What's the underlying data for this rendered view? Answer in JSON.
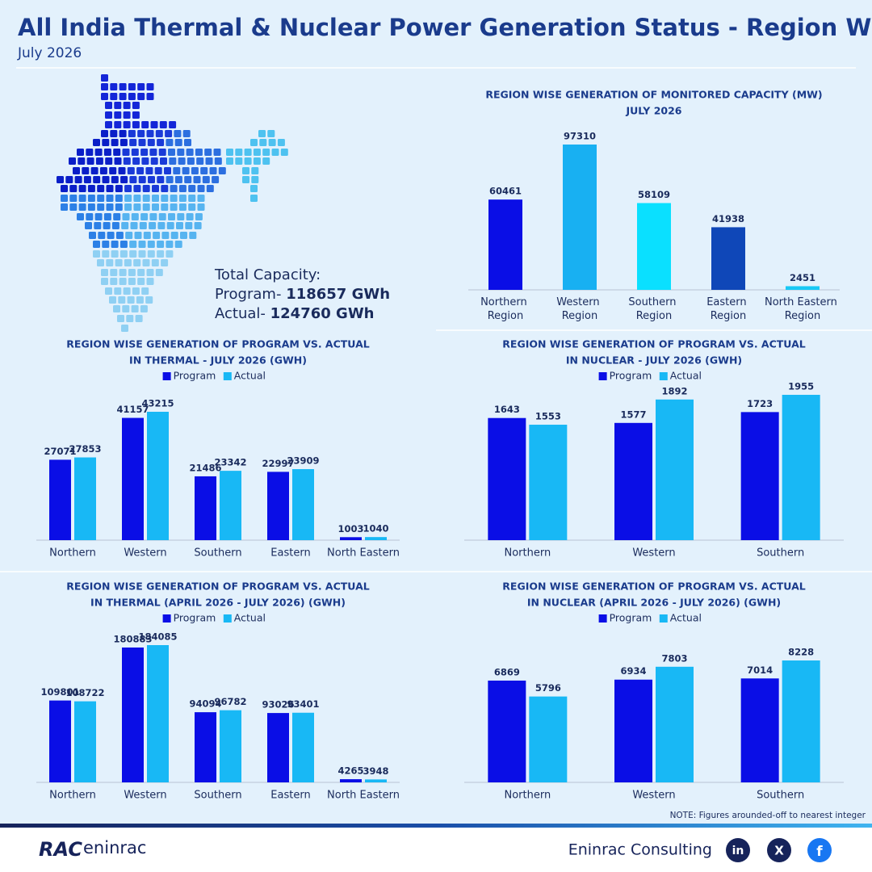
{
  "header": {
    "title": "All India Thermal & Nuclear Power Generation Status - Region Wise",
    "subtitle": "July 2026"
  },
  "capacity": {
    "label": "Total Capacity:",
    "program_label": "Program-",
    "program_value": "118657 GWh",
    "actual_label": "Actual-",
    "actual_value": "124760 GWh"
  },
  "chart_data": [
    {
      "type": "bar",
      "title": [
        "REGION WISE GENERATION OF MONITORED CAPACITY (MW)",
        "JULY 2026"
      ],
      "categories": [
        "Northern Region",
        "Western Region",
        "Southern Region",
        "Eastern Region",
        "North Eastern Region"
      ],
      "values": [
        60461,
        97310,
        58109,
        41938,
        2451
      ],
      "colors": [
        "#0a0ee6",
        "#18b0f2",
        "#0ae0ff",
        "#0f47b8",
        "#18c8f5"
      ]
    },
    {
      "type": "grouped-bar",
      "title": [
        "REGION WISE GENERATION OF PROGRAM VS. ACTUAL",
        "IN THERMAL  - JULY 2026 (GWH)"
      ],
      "categories": [
        "Northern",
        "Western",
        "Southern",
        "Eastern",
        "North Eastern"
      ],
      "series": [
        {
          "name": "Program",
          "color": "#0a0ee6",
          "values": [
            27071,
            41157,
            21486,
            22997,
            1003
          ]
        },
        {
          "name": "Actual",
          "color": "#18b8f5",
          "values": [
            27853,
            43215,
            23342,
            23909,
            1040
          ]
        }
      ]
    },
    {
      "type": "grouped-bar",
      "title": [
        "REGION WISE GENERATION OF PROGRAM VS. ACTUAL",
        "IN NUCLEAR - JULY 2026 (GWH)"
      ],
      "categories": [
        "Northern",
        "Western",
        "Southern"
      ],
      "series": [
        {
          "name": "Program",
          "color": "#0a0ee6",
          "values": [
            1643,
            1577,
            1723
          ]
        },
        {
          "name": "Actual",
          "color": "#18b8f5",
          "values": [
            1553,
            1892,
            1955
          ]
        }
      ]
    },
    {
      "type": "grouped-bar",
      "title": [
        "REGION WISE GENERATION OF PROGRAM VS. ACTUAL",
        "IN THERMAL (APRIL 2026 - JULY 2026) (GWH)"
      ],
      "categories": [
        "Northern",
        "Western",
        "Southern",
        "Eastern",
        "North Eastern"
      ],
      "series": [
        {
          "name": "Program",
          "color": "#0a0ee6",
          "values": [
            109801,
            180883,
            94094,
            93026,
            4265
          ]
        },
        {
          "name": "Actual",
          "color": "#18b8f5",
          "values": [
            108722,
            184085,
            96782,
            93401,
            3948
          ]
        }
      ]
    },
    {
      "type": "grouped-bar",
      "title": [
        "REGION WISE GENERATION OF PROGRAM VS. ACTUAL",
        "IN NUCLEAR (APRIL 2026 - JULY 2026) (GWH)"
      ],
      "categories": [
        "Northern",
        "Western",
        "Southern"
      ],
      "series": [
        {
          "name": "Program",
          "color": "#0a0ee6",
          "values": [
            6869,
            6934,
            7014
          ]
        },
        {
          "name": "Actual",
          "color": "#18b8f5",
          "values": [
            5796,
            7803,
            8228
          ]
        }
      ]
    }
  ],
  "note": "NOTE: Figures arounded-off to nearest integer",
  "footer": {
    "logo_left": "RAC",
    "logo_right": "eninrac",
    "company": "Eninrac Consulting",
    "icons": [
      "in",
      "X",
      "f"
    ]
  }
}
